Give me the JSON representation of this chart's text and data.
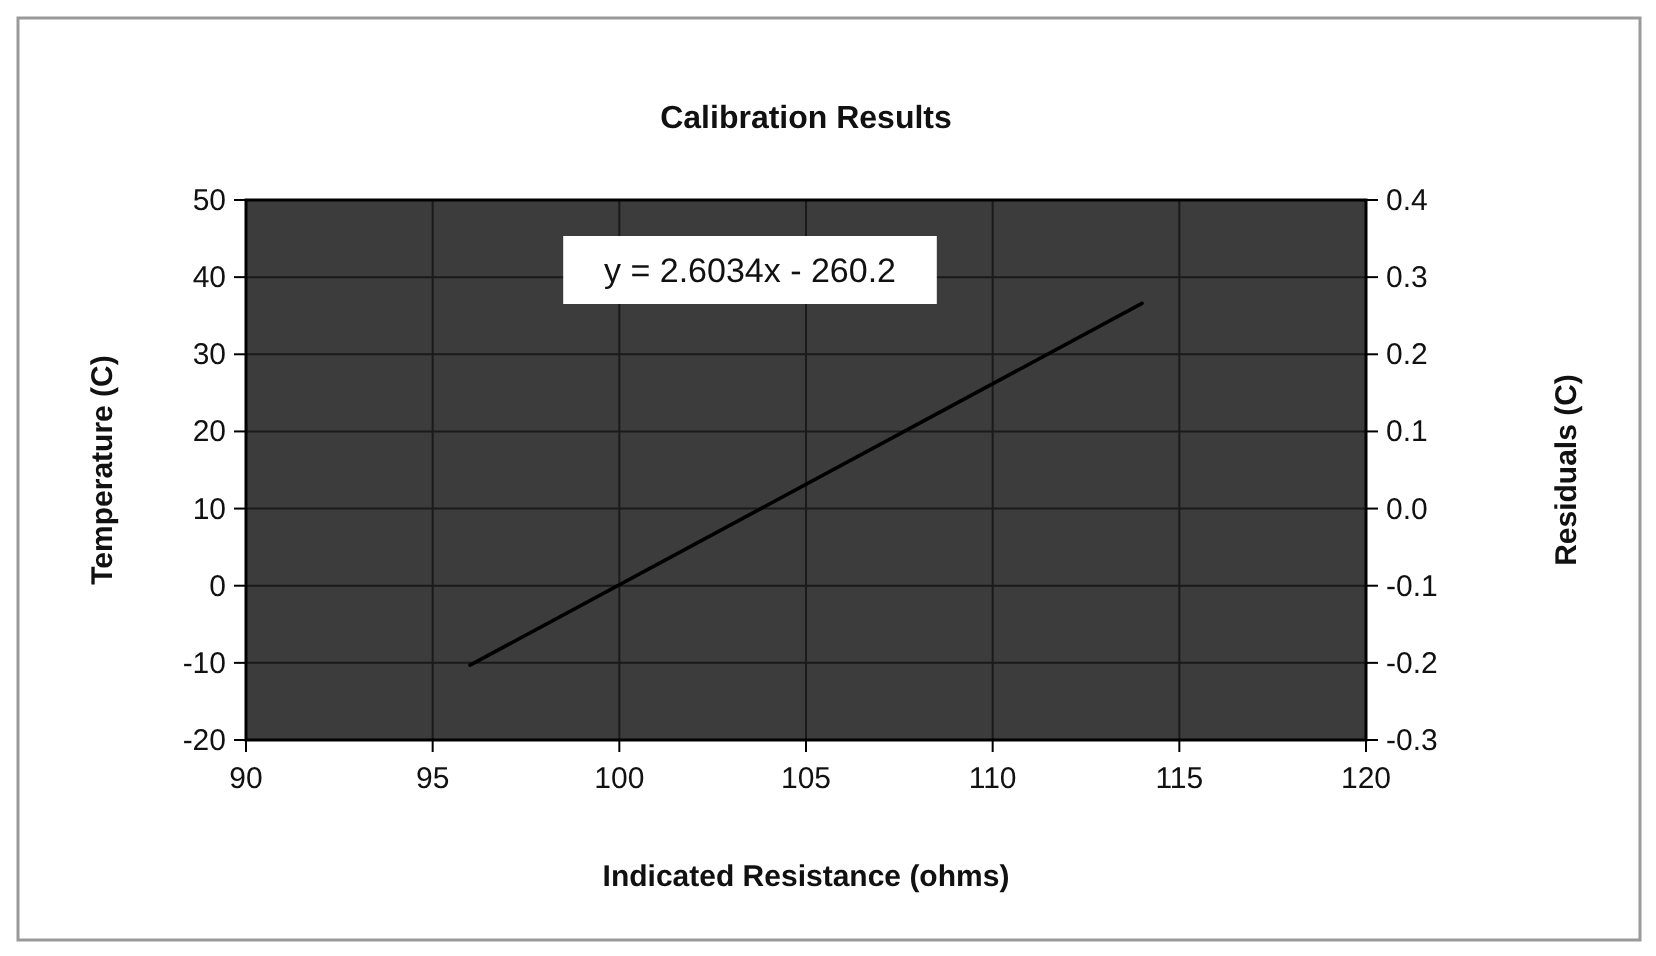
{
  "chart_data": {
    "type": "line",
    "title": "Calibration Results",
    "xlabel": "Indicated Resistance (ohms)",
    "ylabel": "Temperature (C)",
    "y2label": "Residuals (C)",
    "annotations": [
      "y = 2.6034x - 260.2"
    ],
    "series": [
      {
        "color": "#000000",
        "x": [
          96,
          114
        ],
        "values": [
          -10.3,
          36.6
        ]
      }
    ],
    "xlim": [
      90,
      120
    ],
    "xticks": [
      90,
      95,
      100,
      105,
      110,
      115,
      120
    ],
    "ylim": [
      -20,
      50
    ],
    "yticks": [
      -20,
      -10,
      0,
      10,
      20,
      30,
      40,
      50
    ],
    "y2lim": [
      -0.3,
      0.4
    ],
    "y2ticks": [
      -0.3,
      -0.2,
      -0.1,
      {
        "value": 0,
        "label": "0.0"
      },
      0.1,
      0.2,
      0.3,
      0.4
    ],
    "grid": true,
    "line_style": "solid"
  }
}
